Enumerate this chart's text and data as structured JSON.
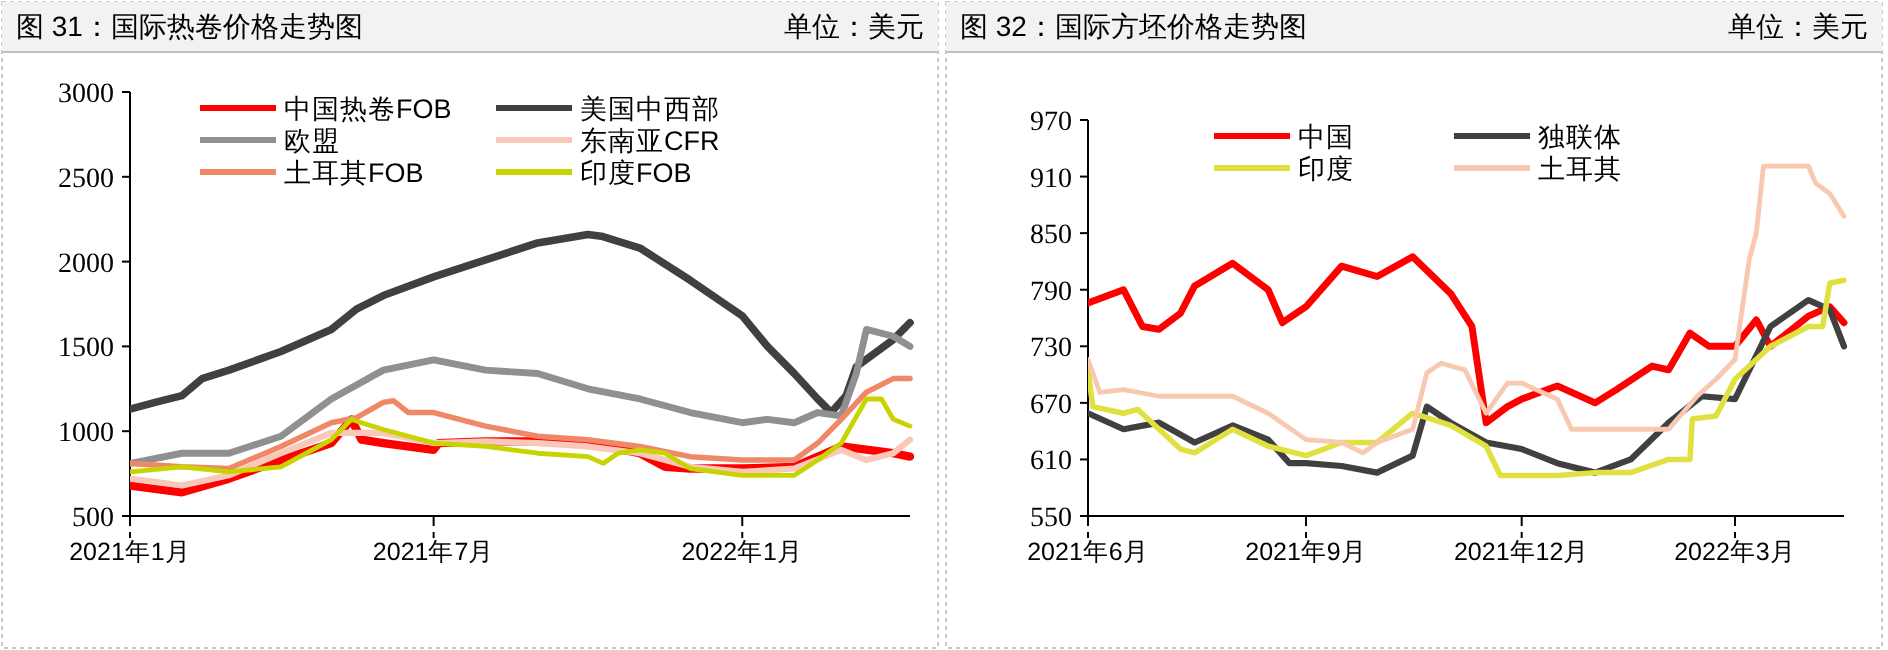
{
  "chart_data": [
    {
      "type": "line",
      "title": "图 31：国际热卷价格走势图",
      "subtitle": "单位：美元",
      "xlim": [
        "2021-01-01",
        "2022-04-11"
      ],
      "xticks": [
        {
          "value": "2021-01-01",
          "label": "2021年1月"
        },
        {
          "value": "2021-07-01",
          "label": "2021年7月"
        },
        {
          "value": "2022-01-01",
          "label": "2022年1月"
        }
      ],
      "ylim": [
        500,
        3000
      ],
      "yticks": [
        500,
        1000,
        1500,
        2000,
        2500,
        3000
      ],
      "grid": false,
      "legend": "top",
      "series": [
        {
          "name": "中国热卷FOB",
          "color": "#ff0000",
          "x": [
            "2021-01-01",
            "2021-01-16",
            "2021-02-01",
            "2021-03-01",
            "2021-04-01",
            "2021-05-01",
            "2021-05-13",
            "2021-05-19",
            "2021-06-01",
            "2021-07-01",
            "2021-07-04",
            "2021-08-01",
            "2021-09-01",
            "2021-10-01",
            "2021-11-01",
            "2021-11-16",
            "2021-12-01",
            "2022-01-01",
            "2022-02-01",
            "2022-03-01",
            "2022-04-01",
            "2022-04-11"
          ],
          "values": [
            680,
            660,
            640,
            720,
            830,
            930,
            1070,
            950,
            930,
            890,
            930,
            940,
            940,
            930,
            870,
            790,
            780,
            780,
            790,
            910,
            870,
            850
          ]
        },
        {
          "name": "美国中西部",
          "color": "#404040",
          "x": [
            "2021-01-01",
            "2021-01-16",
            "2021-02-01",
            "2021-02-13",
            "2021-03-01",
            "2021-04-01",
            "2021-05-01",
            "2021-05-16",
            "2021-06-01",
            "2021-07-01",
            "2021-08-01",
            "2021-09-01",
            "2021-10-01",
            "2021-10-09",
            "2021-11-01",
            "2021-12-01",
            "2022-01-01",
            "2022-01-16",
            "2022-02-01",
            "2022-02-15",
            "2022-02-23",
            "2022-03-04",
            "2022-03-10",
            "2022-04-01",
            "2022-04-11"
          ],
          "values": [
            1130,
            1170,
            1210,
            1310,
            1360,
            1470,
            1600,
            1720,
            1800,
            1910,
            2010,
            2110,
            2160,
            2150,
            2080,
            1890,
            1680,
            1500,
            1340,
            1190,
            1110,
            1210,
            1380,
            1540,
            1640
          ]
        },
        {
          "name": "欧盟",
          "color": "#909090",
          "x": [
            "2021-01-01",
            "2021-02-01",
            "2021-03-01",
            "2021-04-01",
            "2021-05-01",
            "2021-06-01",
            "2021-07-01",
            "2021-08-01",
            "2021-09-01",
            "2021-10-01",
            "2021-11-01",
            "2021-12-01",
            "2022-01-01",
            "2022-01-16",
            "2022-02-01",
            "2022-02-15",
            "2022-03-01",
            "2022-03-10",
            "2022-03-16",
            "2022-04-01",
            "2022-04-11"
          ],
          "values": [
            810,
            870,
            870,
            970,
            1190,
            1360,
            1420,
            1360,
            1340,
            1250,
            1190,
            1110,
            1050,
            1070,
            1050,
            1110,
            1090,
            1340,
            1600,
            1560,
            1500
          ]
        },
        {
          "name": "东南亚CFR",
          "color": "#f8c8b8",
          "x": [
            "2021-01-01",
            "2021-02-01",
            "2021-03-01",
            "2021-04-01",
            "2021-05-01",
            "2021-06-01",
            "2021-07-01",
            "2021-08-01",
            "2021-09-01",
            "2021-10-01",
            "2021-11-01",
            "2021-12-01",
            "2022-01-01",
            "2022-02-01",
            "2022-03-01",
            "2022-03-16",
            "2022-04-01",
            "2022-04-11"
          ],
          "values": [
            720,
            680,
            740,
            870,
            990,
            990,
            930,
            940,
            930,
            910,
            870,
            790,
            760,
            780,
            890,
            830,
            870,
            950
          ]
        },
        {
          "name": "土耳其FOB",
          "color": "#f08868",
          "x": [
            "2021-01-01",
            "2021-02-01",
            "2021-03-01",
            "2021-04-01",
            "2021-05-01",
            "2021-05-16",
            "2021-06-01",
            "2021-06-07",
            "2021-06-16",
            "2021-07-01",
            "2021-08-01",
            "2021-09-01",
            "2021-10-01",
            "2021-11-01",
            "2021-12-01",
            "2022-01-01",
            "2022-02-01",
            "2022-02-15",
            "2022-03-01",
            "2022-03-16",
            "2022-04-01",
            "2022-04-11"
          ],
          "values": [
            810,
            790,
            780,
            910,
            1050,
            1080,
            1170,
            1180,
            1110,
            1110,
            1030,
            970,
            950,
            910,
            850,
            830,
            830,
            930,
            1070,
            1230,
            1310,
            1310
          ]
        },
        {
          "name": "印度FOB",
          "color": "#c8d400",
          "x": [
            "2021-01-01",
            "2021-02-01",
            "2021-03-01",
            "2021-04-01",
            "2021-05-01",
            "2021-05-13",
            "2021-05-19",
            "2021-06-01",
            "2021-06-16",
            "2021-07-01",
            "2021-08-01",
            "2021-09-01",
            "2021-10-01",
            "2021-10-10",
            "2021-10-19",
            "2021-11-01",
            "2021-11-16",
            "2021-12-01",
            "2022-01-01",
            "2022-02-01",
            "2022-02-15",
            "2022-03-01",
            "2022-03-16",
            "2022-03-25",
            "2022-04-01",
            "2022-04-11"
          ],
          "values": [
            760,
            790,
            760,
            790,
            950,
            1070,
            1050,
            1010,
            970,
            930,
            910,
            870,
            850,
            810,
            870,
            890,
            870,
            780,
            740,
            740,
            830,
            930,
            1190,
            1190,
            1070,
            1030
          ]
        }
      ]
    },
    {
      "type": "line",
      "title": "图 32：国际方坯价格走势图",
      "subtitle": "单位：美元",
      "xlim": [
        "2021-06-01",
        "2022-04-16"
      ],
      "xticks": [
        {
          "value": "2021-06-01",
          "label": "2021年6月"
        },
        {
          "value": "2021-09-01",
          "label": "2021年9月"
        },
        {
          "value": "2021-12-01",
          "label": "2021年12月"
        },
        {
          "value": "2022-03-01",
          "label": "2022年3月"
        }
      ],
      "ylim": [
        550,
        970
      ],
      "yticks": [
        550,
        610,
        670,
        730,
        790,
        850,
        910,
        970
      ],
      "grid": false,
      "legend": "top",
      "series": [
        {
          "name": "中国",
          "color": "#ff0000",
          "x": [
            "2021-06-01",
            "2021-06-16",
            "2021-06-24",
            "2021-07-01",
            "2021-07-10",
            "2021-07-16",
            "2021-08-01",
            "2021-08-16",
            "2021-08-22",
            "2021-09-01",
            "2021-09-16",
            "2021-10-01",
            "2021-10-16",
            "2021-11-01",
            "2021-11-10",
            "2021-11-16",
            "2021-11-25",
            "2021-12-01",
            "2021-12-16",
            "2022-01-01",
            "2022-01-10",
            "2022-01-25",
            "2022-02-01",
            "2022-02-10",
            "2022-02-18",
            "2022-03-01",
            "2022-03-10",
            "2022-03-16",
            "2022-04-01",
            "2022-04-10",
            "2022-04-16"
          ],
          "values": [
            776,
            790,
            751,
            748,
            765,
            794,
            818,
            790,
            755,
            772,
            815,
            804,
            825,
            786,
            751,
            649,
            666,
            674,
            688,
            670,
            684,
            709,
            705,
            744,
            730,
            730,
            758,
            730,
            762,
            772,
            755
          ]
        },
        {
          "name": "独联体",
          "color": "#404040",
          "x": [
            "2021-06-01",
            "2021-06-16",
            "2021-07-01",
            "2021-07-16",
            "2021-08-01",
            "2021-08-16",
            "2021-08-25",
            "2021-09-01",
            "2021-09-16",
            "2021-10-01",
            "2021-10-16",
            "2021-10-22",
            "2021-11-01",
            "2021-11-16",
            "2021-12-01",
            "2021-12-16",
            "2022-01-01",
            "2022-01-16",
            "2022-02-01",
            "2022-02-15",
            "2022-03-01",
            "2022-03-10",
            "2022-03-16",
            "2022-04-01",
            "2022-04-10",
            "2022-04-16"
          ],
          "values": [
            659,
            642,
            649,
            628,
            646,
            631,
            606,
            606,
            603,
            596,
            614,
            666,
            649,
            628,
            621,
            606,
            596,
            610,
            649,
            677,
            674,
            720,
            751,
            779,
            769,
            730
          ]
        },
        {
          "name": "印度",
          "color": "#e0e040",
          "x": [
            "2021-06-01",
            "2021-06-03",
            "2021-06-16",
            "2021-06-22",
            "2021-07-01",
            "2021-07-10",
            "2021-07-16",
            "2021-08-01",
            "2021-08-16",
            "2021-09-01",
            "2021-09-16",
            "2021-10-01",
            "2021-10-16",
            "2021-11-01",
            "2021-11-16",
            "2021-11-22",
            "2021-12-01",
            "2021-12-16",
            "2022-01-01",
            "2022-01-16",
            "2022-02-01",
            "2022-02-10",
            "2022-02-11",
            "2022-02-21",
            "2022-03-01",
            "2022-03-16",
            "2022-04-01",
            "2022-04-07",
            "2022-04-10",
            "2022-04-16"
          ],
          "values": [
            705,
            666,
            659,
            663,
            642,
            621,
            617,
            642,
            624,
            614,
            628,
            628,
            659,
            646,
            624,
            593,
            593,
            593,
            596,
            596,
            610,
            610,
            653,
            656,
            695,
            730,
            751,
            751,
            797,
            800
          ]
        },
        {
          "name": "土耳其",
          "color": "#f8c8b0",
          "x": [
            "2021-06-01",
            "2021-06-06",
            "2021-06-16",
            "2021-07-01",
            "2021-08-01",
            "2021-08-16",
            "2021-09-01",
            "2021-09-16",
            "2021-09-25",
            "2021-10-01",
            "2021-10-16",
            "2021-10-22",
            "2021-10-28",
            "2021-11-07",
            "2021-11-16",
            "2021-11-25",
            "2021-12-01",
            "2021-12-16",
            "2021-12-22",
            "2022-01-01",
            "2022-02-01",
            "2022-02-13",
            "2022-02-21",
            "2022-03-01",
            "2022-03-07",
            "2022-03-10",
            "2022-03-13",
            "2022-04-01",
            "2022-04-04",
            "2022-04-10",
            "2022-04-16"
          ],
          "values": [
            716,
            681,
            684,
            677,
            677,
            659,
            631,
            628,
            617,
            628,
            642,
            702,
            712,
            705,
            659,
            691,
            691,
            674,
            642,
            642,
            642,
            677,
            695,
            716,
            822,
            850,
            921,
            921,
            903,
            892,
            868
          ]
        }
      ]
    }
  ]
}
